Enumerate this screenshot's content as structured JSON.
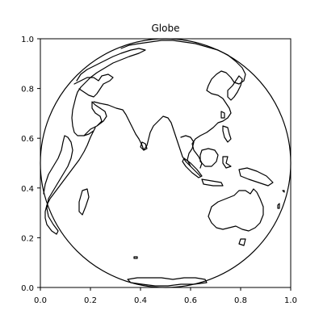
{
  "title": "Globe",
  "axes": {
    "x_ticks": [
      "0.0",
      "0.2",
      "0.4",
      "0.6",
      "0.8",
      "1.0"
    ],
    "y_ticks": [
      "0.0",
      "0.2",
      "0.4",
      "0.6",
      "0.8",
      "1.0"
    ]
  },
  "map": {
    "projection": "orthographic",
    "style": "coastlines outline, black on white"
  }
}
